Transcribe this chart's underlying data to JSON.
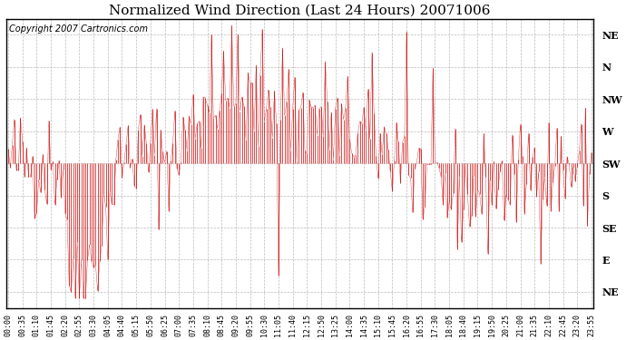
{
  "title": "Normalized Wind Direction (Last 24 Hours) 20071006",
  "copyright_text": "Copyright 2007 Cartronics.com",
  "line_color": "#CC0000",
  "background_color": "#FFFFFF",
  "plot_bg_color": "#FFFFFF",
  "ytick_labels": [
    "NE",
    "E",
    "SE",
    "S",
    "SW",
    "W",
    "NW",
    "N",
    "NE"
  ],
  "ytick_values": [
    1,
    2,
    3,
    4,
    5,
    6,
    7,
    8,
    9
  ],
  "ylim": [
    0.5,
    9.5
  ],
  "grid_color": "#AAAAAA",
  "grid_style": "--",
  "title_fontsize": 11,
  "copyright_fontsize": 7,
  "ytick_fontsize": 8,
  "xtick_fontsize": 6,
  "seed": 42,
  "n_points": 288,
  "tick_every": 7,
  "figwidth": 6.9,
  "figheight": 3.75,
  "dpi": 100
}
